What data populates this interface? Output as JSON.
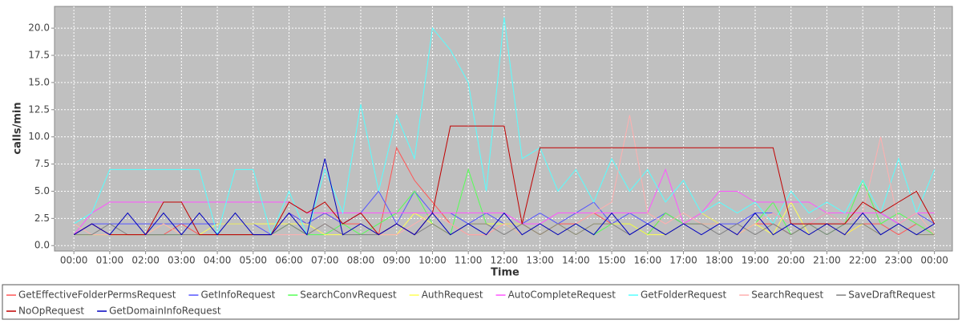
{
  "chart_data": {
    "type": "line",
    "x_label": "Time",
    "y_label": "calls/min",
    "grid": true,
    "legend": "bottom",
    "xlim": [
      -0.54,
      24.5
    ],
    "ylim": [
      -0.5,
      22.0
    ],
    "xticks": [
      {
        "value": 0,
        "label": "00:00"
      },
      {
        "value": 1,
        "label": "01:00"
      },
      {
        "value": 2,
        "label": "02:00"
      },
      {
        "value": 3,
        "label": "03:00"
      },
      {
        "value": 4,
        "label": "04:00"
      },
      {
        "value": 5,
        "label": "05:00"
      },
      {
        "value": 6,
        "label": "06:00"
      },
      {
        "value": 7,
        "label": "07:00"
      },
      {
        "value": 8,
        "label": "08:00"
      },
      {
        "value": 9,
        "label": "09:00"
      },
      {
        "value": 10,
        "label": "10:00"
      },
      {
        "value": 11,
        "label": "11:00"
      },
      {
        "value": 12,
        "label": "12:00"
      },
      {
        "value": 13,
        "label": "13:00"
      },
      {
        "value": 14,
        "label": "14:00"
      },
      {
        "value": 15,
        "label": "15:00"
      },
      {
        "value": 16,
        "label": "16:00"
      },
      {
        "value": 17,
        "label": "17:00"
      },
      {
        "value": 18,
        "label": "18:00"
      },
      {
        "value": 19,
        "label": "19:00"
      },
      {
        "value": 20,
        "label": "20:00"
      },
      {
        "value": 21,
        "label": "21:00"
      },
      {
        "value": 22,
        "label": "22:00"
      },
      {
        "value": 23,
        "label": "23:00"
      },
      {
        "value": 24,
        "label": "00:00"
      }
    ],
    "yticks": [
      {
        "value": 0,
        "label": "0.0"
      },
      {
        "value": 2.5,
        "label": "2.5"
      },
      {
        "value": 5,
        "label": "5.0"
      },
      {
        "value": 7.5,
        "label": "7.5"
      },
      {
        "value": 10,
        "label": "10.0"
      },
      {
        "value": 12.5,
        "label": "12.5"
      },
      {
        "value": 15,
        "label": "15.0"
      },
      {
        "value": 17.5,
        "label": "17.5"
      },
      {
        "value": 20,
        "label": "20.0"
      }
    ],
    "x": [
      0,
      0.5,
      1,
      1.5,
      2,
      2.5,
      3,
      3.5,
      4,
      4.5,
      5,
      5.5,
      6,
      6.5,
      7,
      7.5,
      8,
      8.5,
      9,
      9.5,
      10,
      10.5,
      11,
      11.5,
      12,
      12.5,
      13,
      13.5,
      14,
      14.5,
      15,
      15.5,
      16,
      16.5,
      17,
      17.5,
      18,
      18.5,
      19,
      19.5,
      20,
      20.5,
      21,
      21.5,
      22,
      22.5,
      23,
      23.5,
      24
    ],
    "series": [
      {
        "name": "GetEffectiveFolderPermsRequest",
        "color": "#ff5555",
        "values": [
          1,
          2,
          1,
          1,
          1,
          1,
          2,
          1,
          1,
          1,
          1,
          1,
          3,
          2,
          3,
          2,
          2,
          1,
          9,
          6,
          4,
          2,
          1,
          1,
          2,
          2,
          1,
          2,
          2,
          3,
          2,
          2,
          1,
          3,
          2,
          2,
          2,
          1,
          2,
          2,
          1,
          2,
          2,
          1,
          2,
          2,
          1,
          2,
          1
        ]
      },
      {
        "name": "GetInfoRequest",
        "color": "#5555ff",
        "values": [
          1,
          2,
          2,
          2,
          2,
          2,
          2,
          2,
          2,
          2,
          2,
          1,
          3,
          2,
          3,
          2,
          3,
          5,
          2,
          5,
          3,
          3,
          2,
          3,
          2,
          2,
          3,
          2,
          3,
          4,
          2,
          3,
          2,
          3,
          2,
          3,
          2,
          2,
          3,
          3,
          2,
          2,
          3,
          2,
          3,
          3,
          2,
          3,
          2
        ]
      },
      {
        "name": "SearchConvRequest",
        "color": "#55ff55",
        "values": [
          1,
          1,
          1,
          1,
          1,
          1,
          1,
          1,
          1,
          1,
          1,
          1,
          2,
          1,
          1,
          2,
          1,
          2,
          3,
          5,
          2,
          1,
          7,
          2,
          2,
          1,
          2,
          1,
          2,
          1,
          2,
          2,
          1,
          3,
          2,
          2,
          2,
          1,
          2,
          4,
          1,
          2,
          1,
          2,
          6,
          2,
          3,
          2,
          1
        ]
      },
      {
        "name": "AuthRequest",
        "color": "#ffff55",
        "values": [
          1,
          1,
          1,
          1,
          1,
          2,
          1,
          1,
          2,
          2,
          2,
          2,
          2,
          2,
          1,
          1,
          2,
          1,
          1,
          3,
          2,
          1,
          2,
          2,
          2,
          2,
          1,
          2,
          1,
          2,
          2,
          2,
          1,
          1,
          2,
          3,
          2,
          1,
          2,
          1,
          4,
          1,
          2,
          1,
          2,
          1,
          2,
          1,
          1
        ]
      },
      {
        "name": "AutoCompleteRequest",
        "color": "#ff55ff",
        "values": [
          1,
          3,
          4,
          4,
          4,
          4,
          4,
          4,
          4,
          4,
          4,
          4,
          4,
          3,
          3,
          3,
          3,
          3,
          3,
          3,
          3,
          3,
          3,
          3,
          3,
          2,
          2,
          3,
          3,
          3,
          3,
          3,
          3,
          7,
          2,
          3,
          5,
          5,
          4,
          4,
          4,
          4,
          3,
          3,
          3,
          3,
          2,
          3,
          3
        ]
      },
      {
        "name": "GetFolderRequest",
        "color": "#55ffff",
        "values": [
          2,
          3,
          7,
          7,
          7,
          7,
          7,
          7,
          1,
          7,
          7,
          1,
          5,
          1,
          7,
          3,
          13,
          5,
          12,
          8,
          20,
          18,
          15,
          5,
          21,
          8,
          9,
          5,
          7,
          4,
          8,
          5,
          7,
          4,
          6,
          3,
          4,
          3,
          4,
          2,
          5,
          3,
          4,
          3,
          6,
          3,
          8,
          3,
          7
        ]
      },
      {
        "name": "SearchRequest",
        "color": "#ffafaf",
        "values": [
          2,
          1,
          1,
          1,
          1,
          2,
          1,
          1,
          1,
          1,
          1,
          1,
          1,
          1,
          2,
          1,
          2,
          1,
          1,
          2,
          3,
          2,
          1,
          1,
          2,
          1,
          2,
          1,
          2,
          3,
          4,
          12,
          3,
          2,
          3,
          2,
          2,
          1,
          2,
          3,
          2,
          2,
          3,
          2,
          3,
          10,
          2,
          3,
          1
        ]
      },
      {
        "name": "SaveDraftRequest",
        "color": "#808080",
        "values": [
          1,
          1,
          2,
          1,
          1,
          1,
          1,
          1,
          1,
          1,
          1,
          1,
          2,
          1,
          2,
          1,
          1,
          1,
          2,
          1,
          2,
          1,
          2,
          2,
          1,
          2,
          1,
          2,
          1,
          2,
          2,
          1,
          2,
          1,
          2,
          2,
          1,
          2,
          1,
          2,
          1,
          2,
          1,
          2,
          2,
          1,
          2,
          1,
          1
        ]
      },
      {
        "name": "NoOpRequest",
        "color": "#c00000",
        "values": [
          1,
          2,
          1,
          1,
          1,
          4,
          4,
          1,
          1,
          1,
          1,
          1,
          4,
          3,
          4,
          2,
          3,
          1,
          2,
          1,
          3,
          11,
          11,
          11,
          11,
          2,
          9,
          9,
          9,
          9,
          9,
          9,
          9,
          9,
          9,
          9,
          9,
          9,
          9,
          9,
          2,
          2,
          2,
          2,
          4,
          3,
          4,
          5,
          2
        ]
      },
      {
        "name": "GetDomainInfoRequest",
        "color": "#0000c0",
        "values": [
          1,
          2,
          1,
          3,
          1,
          3,
          1,
          3,
          1,
          3,
          1,
          1,
          3,
          1,
          8,
          1,
          2,
          1,
          2,
          1,
          3,
          1,
          2,
          1,
          3,
          1,
          2,
          1,
          2,
          1,
          3,
          1,
          2,
          1,
          2,
          1,
          2,
          1,
          3,
          1,
          2,
          1,
          2,
          1,
          3,
          1,
          2,
          1,
          2
        ]
      }
    ]
  }
}
